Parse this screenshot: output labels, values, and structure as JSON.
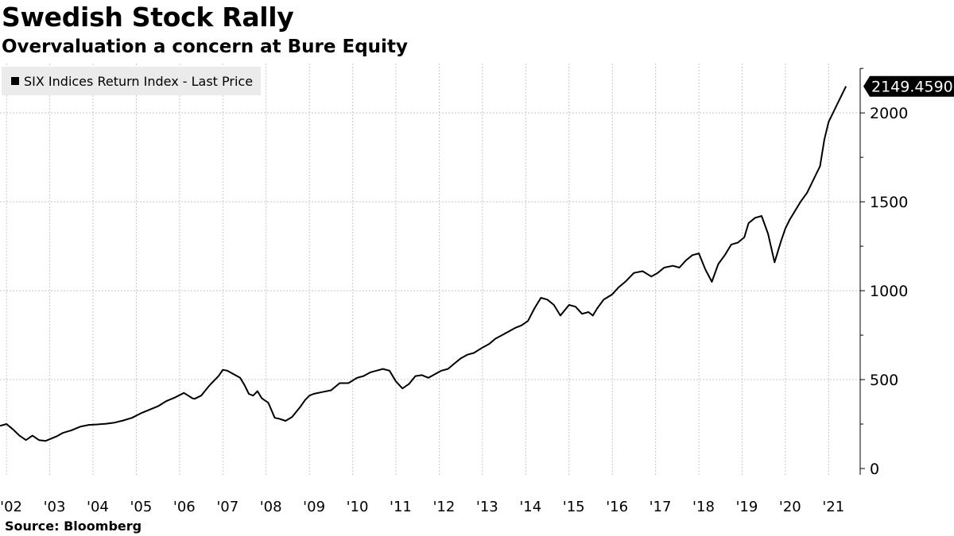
{
  "header": {
    "title": "Swedish Stock Rally",
    "subtitle": "Overvaluation a concern at Bure Equity"
  },
  "footer": {
    "source": "Source: Bloomberg"
  },
  "colors": {
    "line": "#000000",
    "grid": "#c8c8c8",
    "legend_bg": "#ebebeb",
    "label_bg": "#000000",
    "label_text": "#ffffff"
  },
  "chart_data": {
    "type": "line",
    "title": "Swedish Stock Rally",
    "subtitle": "Overvaluation a concern at Bure Equity",
    "xlabel": "",
    "ylabel": "",
    "xlim": [
      2001.85,
      2021.6
    ],
    "ylim": [
      0,
      2300
    ],
    "yticks": [
      0,
      500,
      1000,
      1500,
      2000
    ],
    "ytick_labels": [
      "0",
      "500",
      "1000",
      "1500",
      "2000"
    ],
    "xtick_labels": [
      "'02",
      "'03",
      "'04",
      "'05",
      "'06",
      "'07",
      "'08",
      "'09",
      "'10",
      "'11",
      "'12",
      "'13",
      "'14",
      "'15",
      "'16",
      "'17",
      "'18",
      "'19",
      "'20",
      "'21"
    ],
    "xticks": [
      2002,
      2003,
      2004,
      2005,
      2006,
      2007,
      2008,
      2009,
      2010,
      2011,
      2012,
      2013,
      2014,
      2015,
      2016,
      2017,
      2018,
      2019,
      2020,
      2021
    ],
    "grid": true,
    "legend": "top-left",
    "last_value_label": "2149.4590",
    "series": [
      {
        "name": "SIX Indices Return Index - Last Price",
        "x": [
          2001.85,
          2002.0,
          2002.15,
          2002.3,
          2002.45,
          2002.6,
          2002.75,
          2002.9,
          2003.0,
          2003.15,
          2003.3,
          2003.5,
          2003.7,
          2003.9,
          2004.1,
          2004.3,
          2004.5,
          2004.7,
          2004.9,
          2005.1,
          2005.3,
          2005.5,
          2005.7,
          2005.9,
          2006.1,
          2006.3,
          2006.35,
          2006.5,
          2006.7,
          2006.9,
          2007.0,
          2007.1,
          2007.25,
          2007.4,
          2007.5,
          2007.6,
          2007.7,
          2007.8,
          2007.9,
          2008.05,
          2008.2,
          2008.3,
          2008.45,
          2008.6,
          2008.8,
          2008.9,
          2009.0,
          2009.1,
          2009.3,
          2009.5,
          2009.7,
          2009.9,
          2010.1,
          2010.25,
          2010.4,
          2010.55,
          2010.7,
          2010.85,
          2011.0,
          2011.15,
          2011.3,
          2011.45,
          2011.6,
          2011.75,
          2011.9,
          2012.05,
          2012.2,
          2012.35,
          2012.5,
          2012.65,
          2012.8,
          2013.0,
          2013.15,
          2013.3,
          2013.45,
          2013.6,
          2013.75,
          2013.9,
          2014.05,
          2014.2,
          2014.35,
          2014.5,
          2014.65,
          2014.8,
          2015.0,
          2015.15,
          2015.3,
          2015.45,
          2015.55,
          2015.65,
          2015.8,
          2016.0,
          2016.15,
          2016.3,
          2016.5,
          2016.7,
          2016.9,
          2017.05,
          2017.2,
          2017.4,
          2017.55,
          2017.7,
          2017.85,
          2018.0,
          2018.15,
          2018.3,
          2018.45,
          2018.6,
          2018.75,
          2018.9,
          2019.05,
          2019.15,
          2019.3,
          2019.45,
          2019.6,
          2019.75,
          2019.9,
          2020.0,
          2020.1,
          2020.2,
          2020.35,
          2020.5,
          2020.6,
          2020.7,
          2020.8,
          2020.9,
          2021.0,
          2021.1,
          2021.2,
          2021.3,
          2021.4
        ],
        "values": [
          240,
          250,
          220,
          185,
          160,
          185,
          160,
          155,
          165,
          180,
          200,
          215,
          235,
          245,
          248,
          252,
          258,
          270,
          285,
          310,
          330,
          350,
          380,
          400,
          425,
          395,
          392,
          410,
          470,
          520,
          555,
          550,
          530,
          510,
          470,
          420,
          410,
          435,
          395,
          370,
          285,
          280,
          268,
          290,
          350,
          385,
          410,
          420,
          430,
          440,
          480,
          480,
          510,
          520,
          540,
          550,
          560,
          550,
          490,
          450,
          475,
          520,
          525,
          510,
          530,
          550,
          560,
          590,
          620,
          640,
          650,
          680,
          700,
          730,
          750,
          770,
          790,
          805,
          830,
          900,
          960,
          950,
          920,
          860,
          920,
          910,
          870,
          880,
          860,
          900,
          950,
          980,
          1020,
          1050,
          1100,
          1110,
          1080,
          1100,
          1130,
          1140,
          1130,
          1170,
          1200,
          1210,
          1120,
          1050,
          1150,
          1200,
          1260,
          1270,
          1300,
          1380,
          1410,
          1420,
          1320,
          1160,
          1280,
          1350,
          1400,
          1440,
          1500,
          1550,
          1600,
          1650,
          1700,
          1850,
          1950,
          2000,
          2050,
          2100,
          2149.459
        ]
      }
    ]
  }
}
